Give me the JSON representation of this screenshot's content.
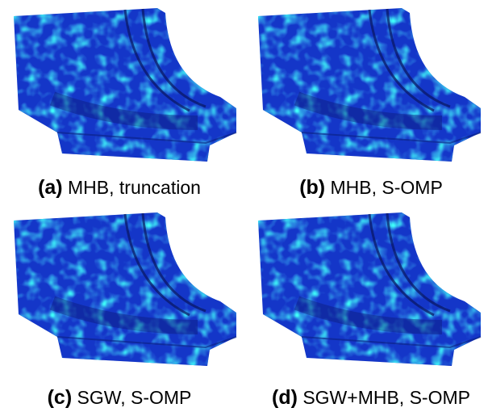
{
  "panels": [
    {
      "label": "(a)",
      "text": "MHB, truncation"
    },
    {
      "label": "(b)",
      "text": "MHB, S-OMP"
    },
    {
      "label": "(c)",
      "text": "SGW, S-OMP"
    },
    {
      "label": "(d)",
      "text": "SGW+MHB, S-OMP"
    }
  ]
}
